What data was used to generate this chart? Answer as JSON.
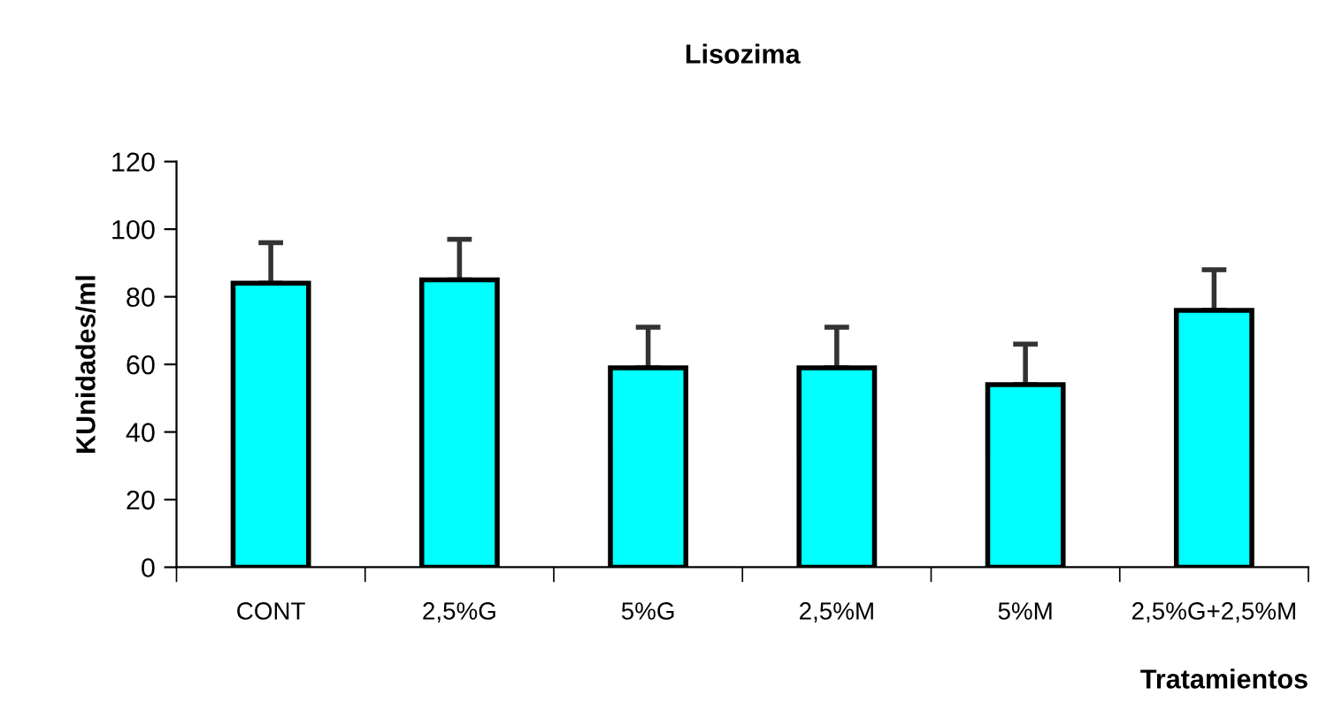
{
  "chart_data": {
    "type": "bar",
    "title": "Lisozima",
    "xlabel": "Tratamientos",
    "ylabel": "KUnidades/ml",
    "categories": [
      "CONT",
      "2,5%G",
      "5%G",
      "2,5%M",
      "5%M",
      "2,5%G+2,5%M"
    ],
    "values": [
      84,
      85,
      59,
      59,
      54,
      76
    ],
    "errors": [
      12,
      12,
      12,
      12,
      12,
      12
    ],
    "color": "#00ffff",
    "ylim": [
      0,
      120
    ],
    "yticks": [
      0,
      20,
      40,
      60,
      80,
      100,
      120
    ],
    "grid": false
  }
}
